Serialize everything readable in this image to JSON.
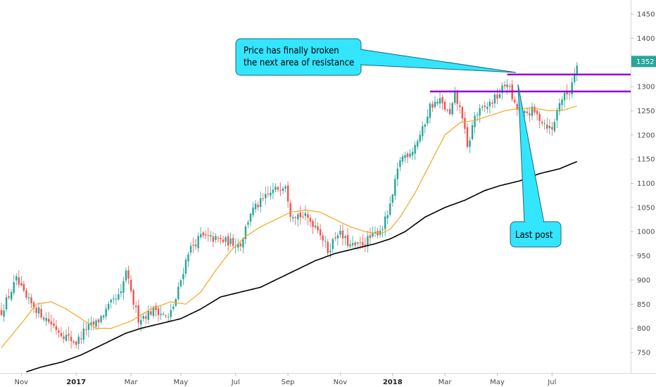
{
  "chart_data": {
    "type": "candlestick",
    "title": "",
    "xlabel": "",
    "ylabel": "",
    "ylim": [
      705,
      1475
    ],
    "y_ticks": [
      750,
      800,
      850,
      900,
      950,
      1000,
      1050,
      1100,
      1150,
      1200,
      1250,
      1300,
      1350,
      1400,
      1450
    ],
    "x_ticks": [
      {
        "label": "Nov",
        "index": 8,
        "bold": false
      },
      {
        "label": "2017",
        "index": 30,
        "bold": true
      },
      {
        "label": "Mar",
        "index": 52,
        "bold": false
      },
      {
        "label": "May",
        "index": 72,
        "bold": false
      },
      {
        "label": "Jul",
        "index": 94,
        "bold": false
      },
      {
        "label": "Sep",
        "index": 115,
        "bold": false
      },
      {
        "label": "Nov",
        "index": 136,
        "bold": false
      },
      {
        "label": "2018",
        "index": 157,
        "bold": true
      },
      {
        "label": "Mar",
        "index": 178,
        "bold": false
      },
      {
        "label": "May",
        "index": 199,
        "bold": false
      },
      {
        "label": "Jul",
        "index": 221,
        "bold": false
      }
    ],
    "last_price": "1352",
    "colors": {
      "up": "#26a69a",
      "down": "#ef5350",
      "ma_fast": "#f5a623",
      "ma_slow": "#000000",
      "resistance": "#9400d3",
      "callout_fill": "#33e5ff",
      "price_badge": "#26a69a"
    },
    "price_path": [
      {
        "i": 0,
        "p": 835
      },
      {
        "i": 6,
        "p": 900
      },
      {
        "i": 10,
        "p": 860
      },
      {
        "i": 14,
        "p": 840
      },
      {
        "i": 18,
        "p": 820
      },
      {
        "i": 24,
        "p": 790
      },
      {
        "i": 30,
        "p": 770
      },
      {
        "i": 34,
        "p": 800
      },
      {
        "i": 38,
        "p": 810
      },
      {
        "i": 44,
        "p": 850
      },
      {
        "i": 48,
        "p": 870
      },
      {
        "i": 50,
        "p": 920
      },
      {
        "i": 52,
        "p": 870
      },
      {
        "i": 55,
        "p": 820
      },
      {
        "i": 62,
        "p": 840
      },
      {
        "i": 67,
        "p": 820
      },
      {
        "i": 70,
        "p": 860
      },
      {
        "i": 75,
        "p": 960
      },
      {
        "i": 80,
        "p": 990
      },
      {
        "i": 85,
        "p": 985
      },
      {
        "i": 90,
        "p": 980
      },
      {
        "i": 96,
        "p": 975
      },
      {
        "i": 100,
        "p": 1040
      },
      {
        "i": 108,
        "p": 1080
      },
      {
        "i": 114,
        "p": 1100
      },
      {
        "i": 116,
        "p": 1040
      },
      {
        "i": 122,
        "p": 1030
      },
      {
        "i": 127,
        "p": 1010
      },
      {
        "i": 131,
        "p": 960
      },
      {
        "i": 135,
        "p": 1000
      },
      {
        "i": 140,
        "p": 970
      },
      {
        "i": 143,
        "p": 970
      },
      {
        "i": 149,
        "p": 990
      },
      {
        "i": 153,
        "p": 1010
      },
      {
        "i": 156,
        "p": 1050
      },
      {
        "i": 160,
        "p": 1150
      },
      {
        "i": 165,
        "p": 1170
      },
      {
        "i": 169,
        "p": 1210
      },
      {
        "i": 172,
        "p": 1260
      },
      {
        "i": 176,
        "p": 1270
      },
      {
        "i": 180,
        "p": 1240
      },
      {
        "i": 182,
        "p": 1280
      },
      {
        "i": 185,
        "p": 1240
      },
      {
        "i": 187,
        "p": 1170
      },
      {
        "i": 190,
        "p": 1240
      },
      {
        "i": 195,
        "p": 1260
      },
      {
        "i": 199,
        "p": 1280
      },
      {
        "i": 203,
        "p": 1310
      },
      {
        "i": 206,
        "p": 1260
      },
      {
        "i": 209,
        "p": 1240
      },
      {
        "i": 213,
        "p": 1250
      },
      {
        "i": 217,
        "p": 1230
      },
      {
        "i": 221,
        "p": 1210
      },
      {
        "i": 224,
        "p": 1270
      },
      {
        "i": 228,
        "p": 1290
      },
      {
        "i": 231,
        "p": 1352
      }
    ],
    "ma_fast_path": [
      {
        "i": 0,
        "p": 760
      },
      {
        "i": 8,
        "p": 810
      },
      {
        "i": 14,
        "p": 850
      },
      {
        "i": 20,
        "p": 855
      },
      {
        "i": 26,
        "p": 840
      },
      {
        "i": 32,
        "p": 820
      },
      {
        "i": 38,
        "p": 800
      },
      {
        "i": 44,
        "p": 800
      },
      {
        "i": 52,
        "p": 815
      },
      {
        "i": 60,
        "p": 840
      },
      {
        "i": 68,
        "p": 855
      },
      {
        "i": 74,
        "p": 850
      },
      {
        "i": 80,
        "p": 875
      },
      {
        "i": 86,
        "p": 920
      },
      {
        "i": 92,
        "p": 960
      },
      {
        "i": 98,
        "p": 990
      },
      {
        "i": 104,
        "p": 1010
      },
      {
        "i": 110,
        "p": 1025
      },
      {
        "i": 116,
        "p": 1040
      },
      {
        "i": 122,
        "p": 1045
      },
      {
        "i": 128,
        "p": 1040
      },
      {
        "i": 134,
        "p": 1025
      },
      {
        "i": 140,
        "p": 1010
      },
      {
        "i": 146,
        "p": 1000
      },
      {
        "i": 152,
        "p": 995
      },
      {
        "i": 156,
        "p": 1005
      },
      {
        "i": 160,
        "p": 1030
      },
      {
        "i": 166,
        "p": 1080
      },
      {
        "i": 172,
        "p": 1140
      },
      {
        "i": 178,
        "p": 1200
      },
      {
        "i": 184,
        "p": 1225
      },
      {
        "i": 190,
        "p": 1230
      },
      {
        "i": 196,
        "p": 1240
      },
      {
        "i": 202,
        "p": 1250
      },
      {
        "i": 208,
        "p": 1255
      },
      {
        "i": 214,
        "p": 1255
      },
      {
        "i": 220,
        "p": 1250
      },
      {
        "i": 226,
        "p": 1252
      },
      {
        "i": 231,
        "p": 1260
      }
    ],
    "ma_slow_path": [
      {
        "i": 10,
        "p": 710
      },
      {
        "i": 16,
        "p": 720
      },
      {
        "i": 24,
        "p": 730
      },
      {
        "i": 32,
        "p": 745
      },
      {
        "i": 40,
        "p": 765
      },
      {
        "i": 50,
        "p": 790
      },
      {
        "i": 56,
        "p": 800
      },
      {
        "i": 64,
        "p": 810
      },
      {
        "i": 72,
        "p": 820
      },
      {
        "i": 80,
        "p": 840
      },
      {
        "i": 88,
        "p": 865
      },
      {
        "i": 96,
        "p": 875
      },
      {
        "i": 104,
        "p": 885
      },
      {
        "i": 110,
        "p": 900
      },
      {
        "i": 118,
        "p": 920
      },
      {
        "i": 126,
        "p": 940
      },
      {
        "i": 134,
        "p": 955
      },
      {
        "i": 142,
        "p": 965
      },
      {
        "i": 150,
        "p": 975
      },
      {
        "i": 156,
        "p": 985
      },
      {
        "i": 162,
        "p": 1000
      },
      {
        "i": 170,
        "p": 1030
      },
      {
        "i": 178,
        "p": 1050
      },
      {
        "i": 186,
        "p": 1065
      },
      {
        "i": 194,
        "p": 1085
      },
      {
        "i": 200,
        "p": 1095
      },
      {
        "i": 208,
        "p": 1105
      },
      {
        "i": 216,
        "p": 1120
      },
      {
        "i": 224,
        "p": 1130
      },
      {
        "i": 231,
        "p": 1145
      }
    ],
    "resistance_lines": [
      {
        "from_index": 172,
        "to_index": 270,
        "price": 1290
      },
      {
        "from_index": 203,
        "to_index": 270,
        "price": 1325
      }
    ],
    "annotations": [
      {
        "text_lines": [
          "Price has finally broken",
          "the next area of resistance"
        ],
        "anchor_index": 203,
        "anchor_price": 1325
      },
      {
        "text_lines": [
          "Last post"
        ],
        "anchor_index": 204,
        "anchor_price": 1300
      }
    ]
  }
}
